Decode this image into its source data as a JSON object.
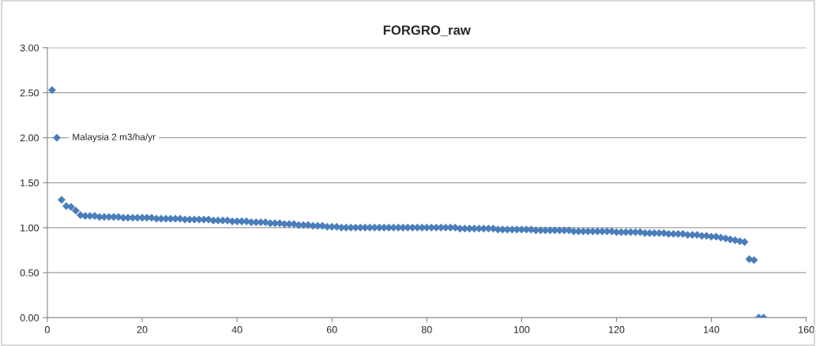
{
  "chart_data": {
    "type": "scatter",
    "title": "FORGRO_raw",
    "x": [
      1,
      2,
      3,
      4,
      5,
      6,
      7,
      8,
      9,
      10,
      11,
      12,
      13,
      14,
      15,
      16,
      17,
      18,
      19,
      20,
      21,
      22,
      23,
      24,
      25,
      26,
      27,
      28,
      29,
      30,
      31,
      32,
      33,
      34,
      35,
      36,
      37,
      38,
      39,
      40,
      41,
      42,
      43,
      44,
      45,
      46,
      47,
      48,
      49,
      50,
      51,
      52,
      53,
      54,
      55,
      56,
      57,
      58,
      59,
      60,
      61,
      62,
      63,
      64,
      65,
      66,
      67,
      68,
      69,
      70,
      71,
      72,
      73,
      74,
      75,
      76,
      77,
      78,
      79,
      80,
      81,
      82,
      83,
      84,
      85,
      86,
      87,
      88,
      89,
      90,
      91,
      92,
      93,
      94,
      95,
      96,
      97,
      98,
      99,
      100,
      101,
      102,
      103,
      104,
      105,
      106,
      107,
      108,
      109,
      110,
      111,
      112,
      113,
      114,
      115,
      116,
      117,
      118,
      119,
      120,
      121,
      122,
      123,
      124,
      125,
      126,
      127,
      128,
      129,
      130,
      131,
      132,
      133,
      134,
      135,
      136,
      137,
      138,
      139,
      140,
      141,
      142,
      143,
      144,
      145,
      146,
      147,
      148,
      149,
      150,
      151
    ],
    "series": [
      {
        "color": "#4a7ebb",
        "values": [
          2.53,
          2.0,
          1.31,
          1.24,
          1.23,
          1.19,
          1.14,
          1.13,
          1.13,
          1.13,
          1.12,
          1.12,
          1.12,
          1.12,
          1.12,
          1.11,
          1.11,
          1.11,
          1.11,
          1.11,
          1.11,
          1.11,
          1.1,
          1.1,
          1.1,
          1.1,
          1.1,
          1.1,
          1.09,
          1.09,
          1.09,
          1.09,
          1.09,
          1.09,
          1.08,
          1.08,
          1.08,
          1.08,
          1.07,
          1.07,
          1.07,
          1.07,
          1.06,
          1.06,
          1.06,
          1.06,
          1.05,
          1.05,
          1.05,
          1.04,
          1.04,
          1.04,
          1.03,
          1.03,
          1.03,
          1.02,
          1.02,
          1.02,
          1.01,
          1.01,
          1.01,
          1.0,
          1.0,
          1.0,
          1.0,
          1.0,
          1.0,
          1.0,
          1.0,
          1.0,
          1.0,
          1.0,
          1.0,
          1.0,
          1.0,
          1.0,
          1.0,
          1.0,
          1.0,
          1.0,
          1.0,
          1.0,
          1.0,
          1.0,
          1.0,
          1.0,
          0.99,
          0.99,
          0.99,
          0.99,
          0.99,
          0.99,
          0.99,
          0.99,
          0.98,
          0.98,
          0.98,
          0.98,
          0.98,
          0.98,
          0.98,
          0.98,
          0.97,
          0.97,
          0.97,
          0.97,
          0.97,
          0.97,
          0.97,
          0.97,
          0.96,
          0.96,
          0.96,
          0.96,
          0.96,
          0.96,
          0.96,
          0.96,
          0.96,
          0.95,
          0.95,
          0.95,
          0.95,
          0.95,
          0.95,
          0.94,
          0.94,
          0.94,
          0.94,
          0.94,
          0.93,
          0.93,
          0.93,
          0.93,
          0.92,
          0.92,
          0.92,
          0.91,
          0.91,
          0.9,
          0.9,
          0.89,
          0.88,
          0.87,
          0.86,
          0.85,
          0.84,
          0.65,
          0.64,
          0.0,
          0.0
        ]
      }
    ],
    "xlim": [
      0,
      160
    ],
    "xticks": [
      0,
      20,
      40,
      60,
      80,
      100,
      120,
      140,
      160
    ],
    "ylim": [
      0,
      3
    ],
    "yticks": [
      {
        "value": 0,
        "label": "0.00"
      },
      {
        "value": 0.5,
        "label": "0.50"
      },
      {
        "value": 1,
        "label": "1.00"
      },
      {
        "value": 1.5,
        "label": "1.50"
      },
      {
        "value": 2,
        "label": "2.00"
      },
      {
        "value": 2.5,
        "label": "2.50"
      },
      {
        "value": 3,
        "label": "3.00"
      }
    ],
    "grid": "y",
    "marker": "diamond",
    "legend": false,
    "annotations": [
      {
        "text": "Malaysia 2 m3/ha/yr",
        "x": 2,
        "y": 2.0
      }
    ]
  }
}
